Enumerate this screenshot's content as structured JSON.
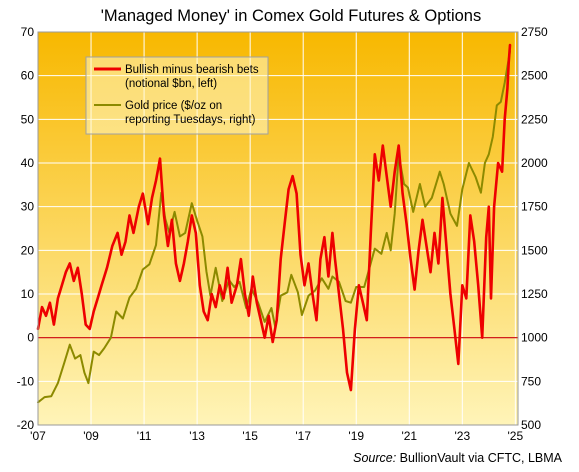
{
  "chart_data": {
    "type": "line",
    "title": "'Managed Money' in Comex Gold Futures & Options",
    "source_label": "Source:",
    "source_text": " BullionVault via CFTC, LBMA",
    "x_ticks": [
      "'07",
      "'09",
      "'11",
      "'13",
      "'15",
      "'17",
      "'19",
      "'21",
      "'23",
      "'25"
    ],
    "x_tick_years": [
      2007,
      2009,
      2011,
      2013,
      2015,
      2017,
      2019,
      2021,
      2023,
      2025
    ],
    "x_range": [
      2007.0,
      2025.1
    ],
    "left_axis": {
      "min": -20,
      "max": 70,
      "step": 10,
      "ticks": [
        "-20",
        "-10",
        "0",
        "10",
        "20",
        "30",
        "40",
        "50",
        "60",
        "70"
      ]
    },
    "right_axis": {
      "min": 500,
      "max": 2750,
      "step": 250,
      "ticks": [
        "500",
        "750",
        "1000",
        "1250",
        "1500",
        "1750",
        "2000",
        "2250",
        "2500",
        "2750"
      ]
    },
    "zero_line": 0,
    "colors": {
      "bets": "#ee0000",
      "gold": "#8c8a00",
      "bg_top": "#f8b800",
      "bg_bottom": "#fff4b8",
      "grid": "#ffffff",
      "zero": "#cc0000"
    },
    "legend": {
      "position": "top-left",
      "bets_lines": [
        "Bullish minus bearish bets",
        "(notional $bn, left)"
      ],
      "gold_lines": [
        "Gold price ($/oz on",
        "reporting Tuesdays, right)"
      ]
    },
    "series": [
      {
        "name": "Bullish minus bearish bets (notional $bn, left)",
        "axis": "left",
        "points": [
          [
            2007.0,
            2
          ],
          [
            2007.15,
            7
          ],
          [
            2007.3,
            5
          ],
          [
            2007.45,
            8
          ],
          [
            2007.6,
            3
          ],
          [
            2007.75,
            9
          ],
          [
            2007.9,
            12
          ],
          [
            2008.05,
            15
          ],
          [
            2008.2,
            17
          ],
          [
            2008.35,
            13
          ],
          [
            2008.5,
            16
          ],
          [
            2008.65,
            10
          ],
          [
            2008.8,
            3
          ],
          [
            2008.95,
            2
          ],
          [
            2009.1,
            6
          ],
          [
            2009.25,
            9
          ],
          [
            2009.4,
            12
          ],
          [
            2009.6,
            16
          ],
          [
            2009.8,
            21
          ],
          [
            2010.0,
            24
          ],
          [
            2010.15,
            19
          ],
          [
            2010.3,
            22
          ],
          [
            2010.45,
            28
          ],
          [
            2010.6,
            24
          ],
          [
            2010.8,
            30
          ],
          [
            2010.95,
            33
          ],
          [
            2011.15,
            26
          ],
          [
            2011.3,
            32
          ],
          [
            2011.45,
            36
          ],
          [
            2011.6,
            41
          ],
          [
            2011.75,
            28
          ],
          [
            2011.9,
            21
          ],
          [
            2012.05,
            27
          ],
          [
            2012.2,
            17
          ],
          [
            2012.35,
            13
          ],
          [
            2012.5,
            17
          ],
          [
            2012.65,
            22
          ],
          [
            2012.8,
            28
          ],
          [
            2012.95,
            24
          ],
          [
            2013.1,
            12
          ],
          [
            2013.25,
            6
          ],
          [
            2013.4,
            4
          ],
          [
            2013.55,
            10
          ],
          [
            2013.7,
            7
          ],
          [
            2013.85,
            12
          ],
          [
            2014.0,
            9
          ],
          [
            2014.15,
            16
          ],
          [
            2014.3,
            8
          ],
          [
            2014.5,
            12
          ],
          [
            2014.65,
            18
          ],
          [
            2014.8,
            10
          ],
          [
            2014.95,
            5
          ],
          [
            2015.1,
            14
          ],
          [
            2015.25,
            8
          ],
          [
            2015.4,
            4
          ],
          [
            2015.55,
            0
          ],
          [
            2015.7,
            5
          ],
          [
            2015.85,
            -1
          ],
          [
            2016.0,
            4
          ],
          [
            2016.15,
            18
          ],
          [
            2016.3,
            26
          ],
          [
            2016.45,
            34
          ],
          [
            2016.6,
            37
          ],
          [
            2016.75,
            33
          ],
          [
            2016.9,
            19
          ],
          [
            2017.05,
            12
          ],
          [
            2017.2,
            17
          ],
          [
            2017.35,
            10
          ],
          [
            2017.5,
            4
          ],
          [
            2017.65,
            18
          ],
          [
            2017.8,
            23
          ],
          [
            2017.95,
            14
          ],
          [
            2018.1,
            24
          ],
          [
            2018.2,
            18
          ],
          [
            2018.35,
            10
          ],
          [
            2018.5,
            2
          ],
          [
            2018.65,
            -8
          ],
          [
            2018.8,
            -12
          ],
          [
            2018.95,
            2
          ],
          [
            2019.1,
            12
          ],
          [
            2019.25,
            8
          ],
          [
            2019.4,
            4
          ],
          [
            2019.55,
            24
          ],
          [
            2019.7,
            42
          ],
          [
            2019.85,
            36
          ],
          [
            2020.0,
            44
          ],
          [
            2020.15,
            37
          ],
          [
            2020.3,
            30
          ],
          [
            2020.45,
            38
          ],
          [
            2020.6,
            44
          ],
          [
            2020.75,
            33
          ],
          [
            2020.9,
            26
          ],
          [
            2021.05,
            18
          ],
          [
            2021.2,
            11
          ],
          [
            2021.35,
            20
          ],
          [
            2021.5,
            27
          ],
          [
            2021.65,
            21
          ],
          [
            2021.8,
            15
          ],
          [
            2021.95,
            24
          ],
          [
            2022.1,
            17
          ],
          [
            2022.25,
            32
          ],
          [
            2022.4,
            21
          ],
          [
            2022.55,
            10
          ],
          [
            2022.7,
            2
          ],
          [
            2022.85,
            -6
          ],
          [
            2023.0,
            12
          ],
          [
            2023.15,
            9
          ],
          [
            2023.3,
            28
          ],
          [
            2023.45,
            22
          ],
          [
            2023.6,
            12
          ],
          [
            2023.75,
            0
          ],
          [
            2023.9,
            23
          ],
          [
            2024.0,
            30
          ],
          [
            2024.08,
            9
          ],
          [
            2024.2,
            30
          ],
          [
            2024.35,
            40
          ],
          [
            2024.5,
            38
          ],
          [
            2024.6,
            50
          ],
          [
            2024.7,
            57
          ],
          [
            2024.75,
            63
          ],
          [
            2024.8,
            67
          ]
        ]
      },
      {
        "name": "Gold price ($/oz on reporting Tuesdays, right)",
        "axis": "right",
        "points": [
          [
            2007.0,
            630
          ],
          [
            2007.25,
            660
          ],
          [
            2007.5,
            665
          ],
          [
            2007.75,
            740
          ],
          [
            2008.0,
            860
          ],
          [
            2008.2,
            960
          ],
          [
            2008.4,
            880
          ],
          [
            2008.6,
            900
          ],
          [
            2008.75,
            800
          ],
          [
            2008.9,
            740
          ],
          [
            2009.1,
            920
          ],
          [
            2009.3,
            900
          ],
          [
            2009.5,
            940
          ],
          [
            2009.75,
            1000
          ],
          [
            2009.95,
            1150
          ],
          [
            2010.2,
            1110
          ],
          [
            2010.45,
            1230
          ],
          [
            2010.7,
            1280
          ],
          [
            2010.95,
            1390
          ],
          [
            2011.2,
            1420
          ],
          [
            2011.45,
            1530
          ],
          [
            2011.65,
            1830
          ],
          [
            2011.8,
            1680
          ],
          [
            2011.95,
            1600
          ],
          [
            2012.15,
            1720
          ],
          [
            2012.35,
            1580
          ],
          [
            2012.55,
            1600
          ],
          [
            2012.8,
            1770
          ],
          [
            2013.0,
            1670
          ],
          [
            2013.2,
            1580
          ],
          [
            2013.35,
            1380
          ],
          [
            2013.5,
            1240
          ],
          [
            2013.7,
            1400
          ],
          [
            2013.95,
            1210
          ],
          [
            2014.2,
            1330
          ],
          [
            2014.4,
            1290
          ],
          [
            2014.6,
            1320
          ],
          [
            2014.85,
            1170
          ],
          [
            2015.05,
            1280
          ],
          [
            2015.3,
            1200
          ],
          [
            2015.55,
            1090
          ],
          [
            2015.8,
            1170
          ],
          [
            2015.95,
            1060
          ],
          [
            2016.15,
            1240
          ],
          [
            2016.4,
            1260
          ],
          [
            2016.55,
            1360
          ],
          [
            2016.8,
            1260
          ],
          [
            2016.95,
            1130
          ],
          [
            2017.2,
            1240
          ],
          [
            2017.45,
            1270
          ],
          [
            2017.7,
            1340
          ],
          [
            2017.95,
            1280
          ],
          [
            2018.1,
            1350
          ],
          [
            2018.35,
            1320
          ],
          [
            2018.6,
            1210
          ],
          [
            2018.8,
            1200
          ],
          [
            2019.0,
            1290
          ],
          [
            2019.3,
            1290
          ],
          [
            2019.5,
            1400
          ],
          [
            2019.7,
            1510
          ],
          [
            2019.95,
            1480
          ],
          [
            2020.15,
            1600
          ],
          [
            2020.3,
            1500
          ],
          [
            2020.45,
            1710
          ],
          [
            2020.6,
            2050
          ],
          [
            2020.8,
            1880
          ],
          [
            2020.95,
            1860
          ],
          [
            2021.15,
            1720
          ],
          [
            2021.4,
            1880
          ],
          [
            2021.6,
            1750
          ],
          [
            2021.85,
            1800
          ],
          [
            2022.15,
            1950
          ],
          [
            2022.3,
            1880
          ],
          [
            2022.55,
            1710
          ],
          [
            2022.8,
            1640
          ],
          [
            2023.0,
            1850
          ],
          [
            2023.25,
            2000
          ],
          [
            2023.5,
            1920
          ],
          [
            2023.7,
            1830
          ],
          [
            2023.85,
            2000
          ],
          [
            2024.0,
            2050
          ],
          [
            2024.15,
            2150
          ],
          [
            2024.3,
            2330
          ],
          [
            2024.45,
            2350
          ],
          [
            2024.6,
            2460
          ],
          [
            2024.8,
            2640
          ]
        ]
      }
    ]
  }
}
